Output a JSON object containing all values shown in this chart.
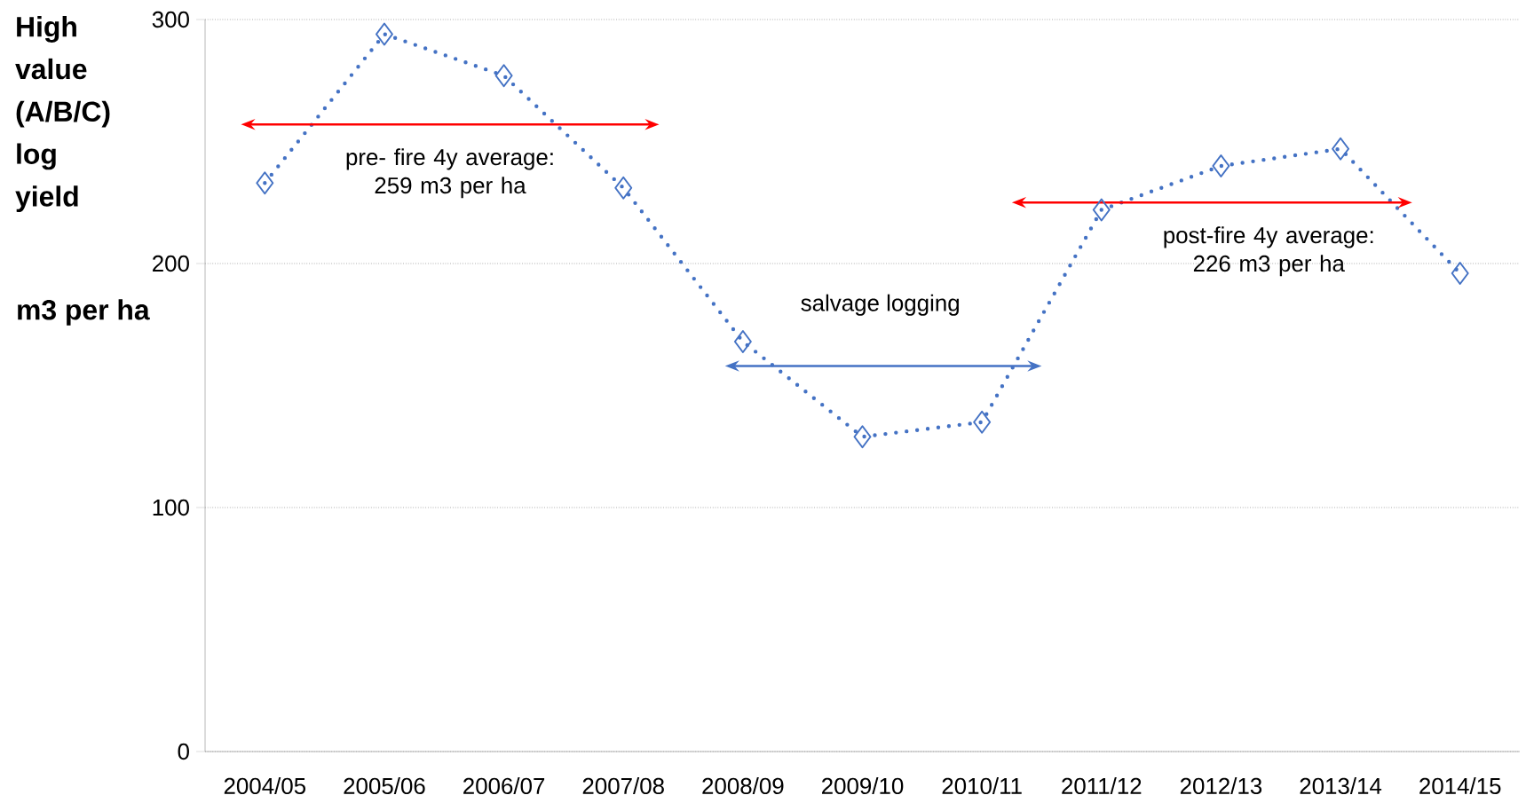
{
  "chart_data": {
    "type": "line",
    "ylabel": "High value (A/B/C) log yield",
    "categories": [
      "2004/05",
      "2005/06",
      "2006/07",
      "2007/08",
      "2008/09",
      "2009/10",
      "2010/11",
      "2011/12",
      "2012/13",
      "2013/14",
      "2014/15"
    ],
    "series": [
      {
        "color": "#4472c4",
        "values": [
          233,
          294,
          277,
          231,
          168,
          129,
          135,
          222,
          240,
          247,
          196
        ]
      }
    ],
    "ylim": [
      0,
      300
    ],
    "yticks": [
      0,
      100,
      200,
      300
    ],
    "grid": "y",
    "marker": "diamond",
    "line_style": "dotted",
    "annotations": [
      "pre- fire 4y average: 259 m3 per ha",
      "salvage  logging",
      "post-fire 4y average: 226 m3 per ha",
      "m3 per ha"
    ]
  }
}
